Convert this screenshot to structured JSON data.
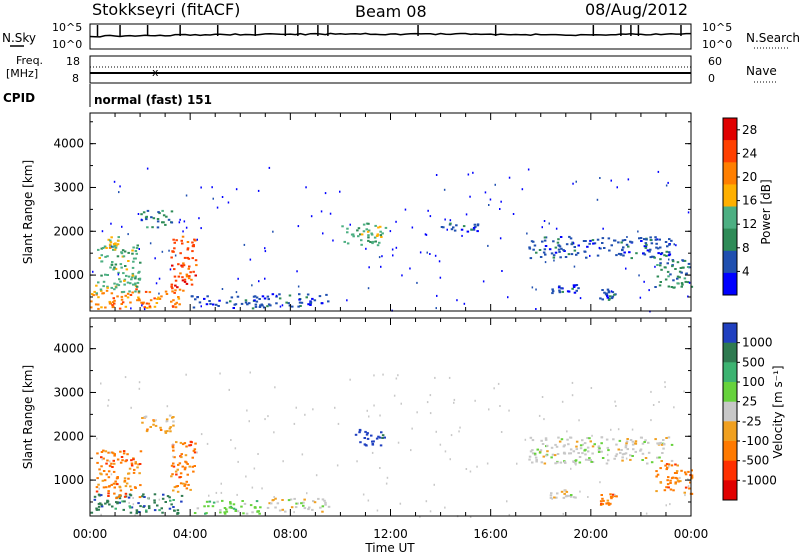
{
  "header": {
    "station": "Stokkseyri (fitACF)",
    "beam": "Beam 08",
    "date": "08/Aug/2012"
  },
  "noise_panel": {
    "left_label": "N.Sky",
    "right_label": "N.Search",
    "left_ticks": [
      "10^5",
      "10^0"
    ],
    "right_ticks": [
      "10^5",
      "10^0"
    ]
  },
  "freq_panel": {
    "left_label_line1": "Freq.",
    "left_label_line2": "[MHz]",
    "right_label": "Nave",
    "left_ticks": [
      "18",
      "8"
    ],
    "right_ticks": [
      "60",
      "0"
    ]
  },
  "cpid": {
    "label": "CPID",
    "value": "normal (fast) 151"
  },
  "colors": {
    "power": [
      "#0000ff",
      "#2050b0",
      "#2e8b57",
      "#4caf82",
      "#ffb000",
      "#ff7f00",
      "#ff4000",
      "#e00000"
    ],
    "velocity": [
      "#2040c0",
      "#2e7a50",
      "#3cb371",
      "#66d23c",
      "#c8c8c8",
      "#f0a020",
      "#ff7a00",
      "#ff3000",
      "#e00000"
    ]
  },
  "chart_data": [
    {
      "type": "heatmap",
      "name": "power",
      "ylabel": "Slant Range [km]",
      "xlabel": "Time UT",
      "xlim": [
        "00:00",
        "24:00"
      ],
      "ylim": [
        180,
        4700
      ],
      "x_ticks": [
        "00:00",
        "04:00",
        "08:00",
        "12:00",
        "16:00",
        "20:00",
        "00:00"
      ],
      "y_ticks": [
        "1000",
        "2000",
        "3000",
        "4000"
      ],
      "colorbar": {
        "label": "Power [dB]",
        "ticks": [
          "4",
          "8",
          "12",
          "16",
          "20",
          "24",
          "28"
        ],
        "range": [
          0,
          30
        ]
      },
      "regions": [
        {
          "t": [
            0.0,
            3.7
          ],
          "r": [
            250,
            700
          ],
          "level": 5
        },
        {
          "t": [
            0.2,
            2.0
          ],
          "r": [
            600,
            1700
          ],
          "level": 3
        },
        {
          "t": [
            0.6,
            1.1
          ],
          "r": [
            1600,
            1900
          ],
          "level": 4
        },
        {
          "t": [
            3.2,
            4.2
          ],
          "r": [
            700,
            1900
          ],
          "level": 6
        },
        {
          "t": [
            2.0,
            3.3
          ],
          "r": [
            2100,
            2500
          ],
          "level": 2
        },
        {
          "t": [
            4.0,
            7.0
          ],
          "r": [
            250,
            550
          ],
          "level": 1
        },
        {
          "t": [
            7.0,
            9.5
          ],
          "r": [
            300,
            600
          ],
          "level": 1
        },
        {
          "t": [
            10.0,
            11.8
          ],
          "r": [
            1700,
            2200
          ],
          "level": 3
        },
        {
          "t": [
            14.0,
            15.5
          ],
          "r": [
            2000,
            2200
          ],
          "level": 1
        },
        {
          "t": [
            17.5,
            23.2
          ],
          "r": [
            1400,
            1900
          ],
          "level": 1
        },
        {
          "t": [
            18.3,
            19.5
          ],
          "r": [
            600,
            800
          ],
          "level": 1
        },
        {
          "t": [
            20.3,
            21.0
          ],
          "r": [
            450,
            700
          ],
          "level": 1
        },
        {
          "t": [
            22.5,
            24.0
          ],
          "r": [
            700,
            1400
          ],
          "level": 2
        }
      ]
    },
    {
      "type": "heatmap",
      "name": "velocity",
      "ylabel": "Slant Range [km]",
      "xlabel": "Time UT",
      "xlim": [
        "00:00",
        "24:00"
      ],
      "ylim": [
        180,
        4700
      ],
      "x_ticks": [
        "00:00",
        "04:00",
        "08:00",
        "12:00",
        "16:00",
        "20:00",
        "00:00"
      ],
      "y_ticks": [
        "1000",
        "2000",
        "3000",
        "4000"
      ],
      "colorbar": {
        "label": "Velocity [m s⁻¹]",
        "ticks": [
          "1000",
          "500",
          "100",
          "25",
          "-25",
          "-100",
          "-500",
          "-1000"
        ]
      },
      "regions": [
        {
          "t": [
            0.0,
            3.7
          ],
          "r": [
            250,
            700
          ],
          "category": 1
        },
        {
          "t": [
            0.2,
            2.0
          ],
          "r": [
            600,
            1700
          ],
          "category": 6
        },
        {
          "t": [
            3.2,
            4.2
          ],
          "r": [
            700,
            1900
          ],
          "category": 6
        },
        {
          "t": [
            2.0,
            3.3
          ],
          "r": [
            2100,
            2500
          ],
          "category": 5
        },
        {
          "t": [
            4.0,
            7.0
          ],
          "r": [
            250,
            550
          ],
          "category": 3
        },
        {
          "t": [
            7.0,
            9.5
          ],
          "r": [
            300,
            600
          ],
          "category": 4
        },
        {
          "t": [
            10.5,
            11.8
          ],
          "r": [
            1800,
            2200
          ],
          "category": 0
        },
        {
          "t": [
            17.5,
            23.2
          ],
          "r": [
            1400,
            2000
          ],
          "category": 4
        },
        {
          "t": [
            18.3,
            19.5
          ],
          "r": [
            600,
            800
          ],
          "category": 4
        },
        {
          "t": [
            20.3,
            21.0
          ],
          "r": [
            450,
            700
          ],
          "category": 6
        },
        {
          "t": [
            22.5,
            24.0
          ],
          "r": [
            700,
            1400
          ],
          "category": 6
        }
      ]
    }
  ]
}
